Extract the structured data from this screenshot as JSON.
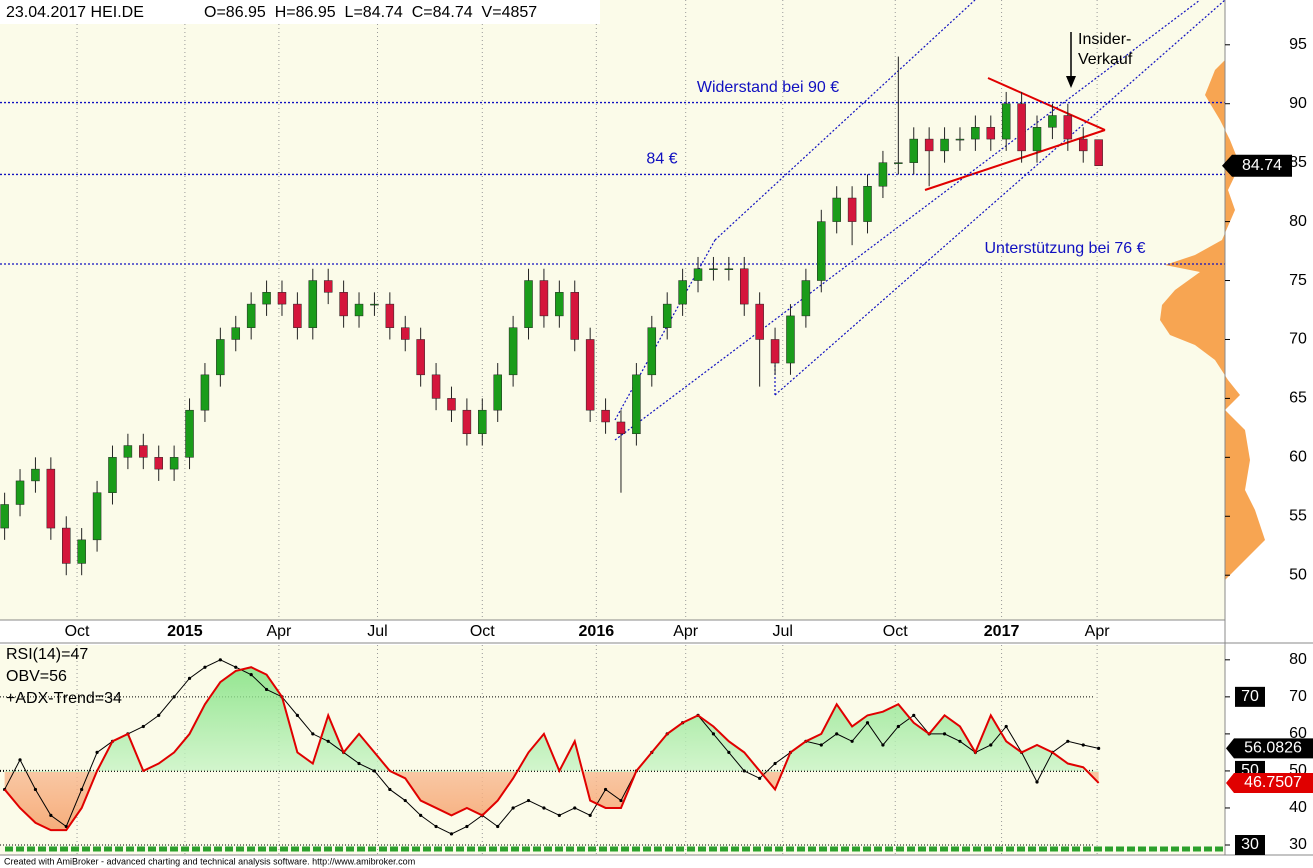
{
  "chart_data": [
    {
      "type": "candlestick",
      "title": "23.04.2017 HEI.DE",
      "subtitle": "O=86.95  H=86.95  L=84.74  C=84.74  V=4857",
      "open": [
        54,
        56,
        58,
        59,
        54,
        51,
        53,
        57,
        60,
        61,
        60,
        59,
        60,
        64,
        67,
        70,
        71,
        73,
        74,
        73,
        71,
        75,
        74,
        72,
        73,
        73,
        71,
        70,
        67,
        65,
        64,
        62,
        64,
        67,
        71,
        75,
        72,
        74,
        70,
        64,
        63,
        62,
        67,
        71,
        73,
        75,
        76,
        76,
        76,
        73,
        70,
        68,
        72,
        75,
        80,
        82,
        80,
        83,
        85,
        85,
        87,
        86,
        87,
        87,
        88,
        87,
        90,
        86,
        88,
        89,
        87,
        86.95
      ],
      "high": [
        57,
        59,
        60,
        60,
        55,
        54,
        58,
        61,
        62,
        62,
        61,
        61,
        65,
        68,
        71,
        72,
        74,
        75,
        75,
        74,
        76,
        76,
        75,
        74,
        74,
        74,
        72,
        71,
        68,
        66,
        65,
        65,
        68,
        72,
        76,
        76,
        75,
        75,
        71,
        65,
        64,
        68,
        72,
        74,
        76,
        77,
        77,
        77,
        77,
        74,
        71,
        73,
        76,
        81,
        83,
        83,
        84,
        86,
        94,
        88,
        88,
        88,
        88,
        89,
        89,
        91,
        91,
        89,
        90,
        90,
        88,
        86.95
      ],
      "low": [
        53,
        55,
        57,
        53,
        50,
        50,
        52,
        56,
        59,
        59,
        58,
        58,
        59,
        63,
        66,
        69,
        70,
        72,
        72,
        70,
        70,
        73,
        71,
        71,
        72,
        70,
        69,
        66,
        64,
        63,
        61,
        61,
        63,
        66,
        70,
        71,
        71,
        69,
        63,
        62,
        57,
        61,
        66,
        70,
        72,
        74,
        75,
        75,
        72,
        66,
        67,
        67,
        71,
        74,
        79,
        78,
        79,
        82,
        84,
        84,
        83,
        85,
        86,
        86,
        86,
        86,
        85,
        85,
        87,
        86,
        85,
        84.74
      ],
      "close": [
        56,
        58,
        59,
        54,
        51,
        53,
        57,
        60,
        61,
        60,
        59,
        60,
        64,
        67,
        70,
        71,
        73,
        74,
        73,
        71,
        75,
        74,
        72,
        73,
        73,
        71,
        70,
        67,
        65,
        64,
        62,
        64,
        67,
        71,
        75,
        72,
        74,
        70,
        64,
        63,
        62,
        67,
        71,
        73,
        75,
        76,
        76,
        76,
        73,
        70,
        68,
        72,
        75,
        80,
        82,
        80,
        83,
        85,
        85,
        87,
        86,
        87,
        87,
        88,
        87,
        90,
        86,
        88,
        89,
        87,
        86,
        84.74
      ],
      "up_color": "#1a9c1a",
      "down_color": "#d4163c",
      "ylim": [
        46.2,
        98.8
      ],
      "yticks": [
        50,
        55,
        60,
        65,
        70,
        75,
        80,
        85,
        90,
        95
      ],
      "xlim": [
        -0.3,
        79.2
      ],
      "xticks": [
        {
          "value": 4.7,
          "label": "Oct"
        },
        {
          "value": 11.7,
          "label": "2015"
        },
        {
          "value": 17.8,
          "label": "Apr"
        },
        {
          "value": 24.2,
          "label": "Jul"
        },
        {
          "value": 31,
          "label": "Oct"
        },
        {
          "value": 38.4,
          "label": "2016"
        },
        {
          "value": 44.2,
          "label": "Apr"
        },
        {
          "value": 50.5,
          "label": "Jul"
        },
        {
          "value": 57.8,
          "label": "Oct"
        },
        {
          "value": 64.7,
          "label": "2017"
        },
        {
          "value": 70.9,
          "label": "Apr"
        }
      ],
      "levels": [
        {
          "value": 90.1,
          "label": "Widerstand bei 90 €"
        },
        {
          "value": 84,
          "label": "84 €"
        },
        {
          "value": 76.4,
          "label": "Unterstützung bei 76 €"
        }
      ],
      "annotations": [
        "Insider-",
        "Verkauf"
      ]
    },
    {
      "type": "line",
      "series": [
        {
          "name": "OBV=56",
          "color": "#000000",
          "values": [
            45,
            53,
            45,
            38,
            35,
            45,
            55,
            58,
            60,
            62,
            65,
            70,
            75,
            78,
            80,
            78,
            76,
            72,
            70,
            65,
            60,
            58,
            55,
            52,
            50,
            45,
            42,
            38,
            35,
            33,
            35,
            38,
            35,
            40,
            42,
            40,
            38,
            40,
            38,
            45,
            42,
            50,
            55,
            60,
            63,
            65,
            60,
            55,
            50,
            48,
            52,
            55,
            58,
            57,
            60,
            58,
            63,
            57,
            62,
            65,
            60,
            60,
            58,
            55,
            57,
            62,
            55,
            47,
            55,
            58,
            57,
            56.0826
          ]
        },
        {
          "name": "RSI(14)=47",
          "color": "#e00000",
          "values": [
            45,
            40,
            36,
            34,
            34,
            40,
            50,
            58,
            60,
            50,
            52,
            55,
            60,
            68,
            74,
            77,
            78,
            76,
            70,
            55,
            52,
            65,
            55,
            60,
            55,
            50,
            48,
            42,
            40,
            38,
            40,
            38,
            42,
            48,
            55,
            60,
            50,
            58,
            42,
            40,
            40,
            50,
            55,
            60,
            63,
            65,
            62,
            58,
            55,
            50,
            45,
            55,
            58,
            60,
            68,
            62,
            65,
            66,
            68,
            63,
            60,
            65,
            62,
            55,
            65,
            58,
            55,
            57,
            55,
            52,
            51,
            46.7507
          ]
        }
      ],
      "legend_extra": "+ADX-Trend=34",
      "ylim": [
        27.3,
        84
      ],
      "yticks": [
        30,
        40,
        50,
        60,
        70,
        80
      ],
      "levels": [
        70,
        50,
        30
      ]
    }
  ],
  "footer": "Created with AmiBroker - advanced charting and technical analysis software. http://www.amibroker.com"
}
